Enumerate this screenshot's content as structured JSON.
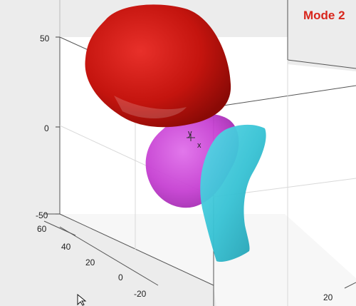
{
  "mode_label": "Mode 2",
  "z_ticks": [
    "50",
    "0",
    "-50"
  ],
  "y_ticks": [
    "60",
    "40",
    "20",
    "0",
    "-20"
  ],
  "x_ticks": [
    "20"
  ],
  "center_marker": {
    "y_label": "y",
    "x_label": "x"
  },
  "colors": {
    "background": "#ececec",
    "plot_face": "#ffffff",
    "mode_label": "#d8261c",
    "red_shape": "#c4140e",
    "magenta_shape": "#cc44d6",
    "cyan_shape": "#38c4d6"
  },
  "icons": [
    "cursor-arrow-icon"
  ]
}
